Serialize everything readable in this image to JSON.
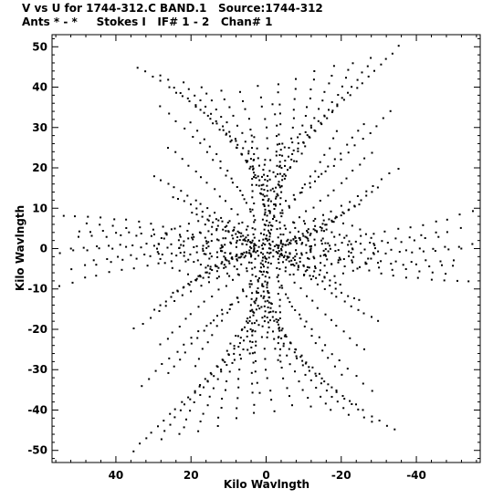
{
  "header": {
    "title": "V vs U for 1744-312.C BAND.1   Source:1744-312",
    "subtitle": "Ants * - *     Stokes I   IF# 1 - 2   Chan# 1"
  },
  "chart_data": {
    "type": "scatter",
    "title": "V vs U for 1744-312.C BAND.1   Source:1744-312",
    "subtitle": "Ants * - *     Stokes I   IF# 1 - 2   Chan# 1",
    "xlabel": "Kilo Wavlngth",
    "ylabel": "Kilo Wavlngth",
    "xlim": [
      57,
      -57
    ],
    "ylim": [
      -53,
      53
    ],
    "x_reversed": true,
    "x_ticks": [
      40,
      20,
      0,
      -20,
      -40
    ],
    "x_tick_labels": [
      "40",
      "20",
      "0",
      "-20",
      "-40"
    ],
    "y_ticks": [
      50,
      40,
      30,
      20,
      10,
      0,
      -10,
      -20,
      -30,
      -40,
      -50
    ],
    "y_tick_labels": [
      "50",
      "40",
      "30",
      "20",
      "10",
      "0",
      "-10",
      "-20",
      "-30",
      "-40",
      "-50"
    ],
    "marker_color": "#000000",
    "grid": false,
    "symmetric": true,
    "tracks": [
      {
        "s": [
          -35,
          50
        ],
        "e": [
          -3,
          24
        ],
        "n": 20
      },
      {
        "s": [
          -28,
          47
        ],
        "e": [
          -2,
          19
        ],
        "n": 19
      },
      {
        "s": [
          -23,
          46
        ],
        "e": [
          -2,
          15
        ],
        "n": 18
      },
      {
        "s": [
          -18,
          45
        ],
        "e": [
          -1,
          12
        ],
        "n": 17
      },
      {
        "s": [
          -13,
          44
        ],
        "e": [
          -1,
          9
        ],
        "n": 17
      },
      {
        "s": [
          -8,
          42
        ],
        "e": [
          -1,
          6
        ],
        "n": 16
      },
      {
        "s": [
          -3,
          41
        ],
        "e": [
          -1,
          3
        ],
        "n": 16
      },
      {
        "s": [
          -2,
          36
        ],
        "e": [
          -1,
          2
        ],
        "n": 14
      },
      {
        "s": [
          2,
          40
        ],
        "e": [
          -1,
          4
        ],
        "n": 15
      },
      {
        "s": [
          7,
          39
        ],
        "e": [
          0,
          6
        ],
        "n": 15
      },
      {
        "s": [
          12,
          39
        ],
        "e": [
          0,
          9
        ],
        "n": 15
      },
      {
        "s": [
          17,
          40
        ],
        "e": [
          1,
          12
        ],
        "n": 16
      },
      {
        "s": [
          22,
          41
        ],
        "e": [
          1,
          15
        ],
        "n": 17
      },
      {
        "s": [
          28,
          43
        ],
        "e": [
          2,
          18
        ],
        "n": 17
      },
      {
        "s": [
          34,
          45
        ],
        "e": [
          3,
          22
        ],
        "n": 18
      },
      {
        "s": [
          -33,
          34
        ],
        "e": [
          -5,
          12
        ],
        "n": 15
      },
      {
        "s": [
          -26,
          31
        ],
        "e": [
          -4,
          9
        ],
        "n": 14
      },
      {
        "s": [
          -19,
          29
        ],
        "e": [
          -3,
          7
        ],
        "n": 13
      },
      {
        "s": [
          20,
          31
        ],
        "e": [
          3,
          7
        ],
        "n": 13
      },
      {
        "s": [
          28,
          35
        ],
        "e": [
          4,
          10
        ],
        "n": 14
      },
      {
        "s": [
          -28,
          24
        ],
        "e": [
          -5,
          5
        ],
        "n": 14
      },
      {
        "s": [
          26,
          25
        ],
        "e": [
          5,
          5
        ],
        "n": 14
      },
      {
        "s": [
          -30,
          15
        ],
        "e": [
          -4,
          1.5
        ],
        "n": 16
      },
      {
        "s": [
          -25,
          11
        ],
        "e": [
          -3,
          0.8
        ],
        "n": 15
      },
      {
        "s": [
          -20,
          8
        ],
        "e": [
          -3,
          0.5
        ],
        "n": 13
      },
      {
        "s": [
          -16,
          5
        ],
        "e": [
          -2,
          0.3
        ],
        "n": 11
      },
      {
        "s": [
          -35,
          20
        ],
        "e": [
          -8,
          5
        ],
        "n": 13
      },
      {
        "s": [
          30,
          18
        ],
        "e": [
          4,
          1.5
        ],
        "n": 16
      },
      {
        "s": [
          25,
          13
        ],
        "e": [
          3,
          1
        ],
        "n": 15
      },
      {
        "s": [
          20,
          9
        ],
        "e": [
          3,
          0.6
        ],
        "n": 13
      },
      {
        "s": [
          16,
          6
        ],
        "e": [
          2,
          0.4
        ],
        "n": 11
      },
      {
        "s": [
          -55,
          9
        ],
        "e": [
          -8,
          2
        ],
        "n": 15
      },
      {
        "s": [
          -52,
          5
        ],
        "e": [
          -6,
          1
        ],
        "n": 14
      },
      {
        "s": [
          -55,
          1
        ],
        "e": [
          -12,
          0.3
        ],
        "n": 13
      },
      {
        "s": [
          -50,
          -3
        ],
        "e": [
          -8,
          -0.5
        ],
        "n": 12
      },
      {
        "s": [
          -46,
          3
        ],
        "e": [
          -15,
          1
        ],
        "n": 10
      },
      {
        "s": [
          54,
          8
        ],
        "e": [
          8,
          2
        ],
        "n": 15
      },
      {
        "s": [
          50,
          4
        ],
        "e": [
          6,
          1
        ],
        "n": 14
      },
      {
        "s": [
          52,
          0
        ],
        "e": [
          12,
          0.1
        ],
        "n": 13
      },
      {
        "s": [
          48,
          6
        ],
        "e": [
          16,
          2
        ],
        "n": 10
      }
    ],
    "loops": [
      {
        "cx": -12,
        "cy": 0,
        "rx": 11,
        "ry": 4.5,
        "n": 30
      },
      {
        "cx": -14,
        "cy": 0,
        "rx": 15,
        "ry": 7,
        "n": 34
      },
      {
        "cx": -10,
        "cy": 0,
        "rx": 7,
        "ry": 2.5,
        "n": 22
      },
      {
        "cx": -8,
        "cy": 0,
        "rx": 4,
        "ry": 1.4,
        "n": 16
      },
      {
        "cx": 12,
        "cy": 0,
        "rx": 11,
        "ry": 4.5,
        "n": 30
      },
      {
        "cx": 14,
        "cy": 0,
        "rx": 15,
        "ry": 7,
        "n": 34
      },
      {
        "cx": 10,
        "cy": 0,
        "rx": 7,
        "ry": 2.5,
        "n": 22
      },
      {
        "cx": 8,
        "cy": 0,
        "rx": 4,
        "ry": 1.4,
        "n": 16
      }
    ],
    "vertical_columns": [
      {
        "x": 0.5,
        "y0": 1,
        "y1": 22,
        "n": 18
      },
      {
        "x": -0.5,
        "y0": 2,
        "y1": 18,
        "n": 14
      },
      {
        "x": 3.5,
        "y0": 2,
        "y1": 28,
        "n": 18
      },
      {
        "x": -4,
        "y0": 2,
        "y1": 26,
        "n": 17
      }
    ]
  }
}
